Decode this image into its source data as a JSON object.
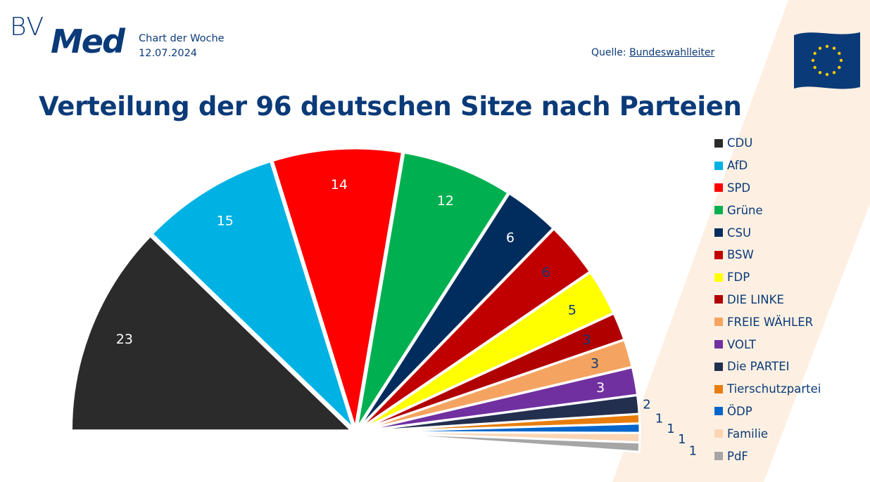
{
  "header": {
    "logo_text": "BVMed",
    "series_label": "Chart der Woche",
    "date": "12.07.2024",
    "source_prefix": "Quelle: ",
    "source_link": "Bundeswahlleiter"
  },
  "icons": {
    "flag": "eu-flag-icon"
  },
  "chart_data": {
    "type": "pie",
    "variant": "semicircle",
    "title": "Verteilung der 96 deutschen Sitze nach Parteien",
    "legend_position": "right",
    "categories": [
      "CDU",
      "AfD",
      "SPD",
      "Grüne",
      "CSU",
      "BSW",
      "FDP",
      "DIE LINKE",
      "FREIE WÄHLER",
      "VOLT",
      "Die PARTEI",
      "Tierschutzpartei",
      "ÖDP",
      "Familie",
      "PdF"
    ],
    "values": [
      23,
      15,
      14,
      12,
      6,
      6,
      5,
      3,
      3,
      3,
      2,
      1,
      1,
      1,
      1
    ],
    "colors": [
      "#2b2b2b",
      "#00b2e3",
      "#ff0000",
      "#00b050",
      "#002d5e",
      "#c00000",
      "#ffff00",
      "#b00000",
      "#f4a460",
      "#7030a0",
      "#232f4e",
      "#e87d0d",
      "#0066cc",
      "#fcd5b4",
      "#a6a6a6"
    ],
    "label_colors": [
      "#ffffff",
      "#ffffff",
      "#ffffff",
      "#ffffff",
      "#ffffff",
      "#0b3a78",
      "#0b3a78",
      "#0b3a78",
      "#0b3a78",
      "#ffffff",
      "#0b3a78",
      "#0b3a78",
      "#0b3a78",
      "#0b3a78",
      "#0b3a78"
    ]
  }
}
